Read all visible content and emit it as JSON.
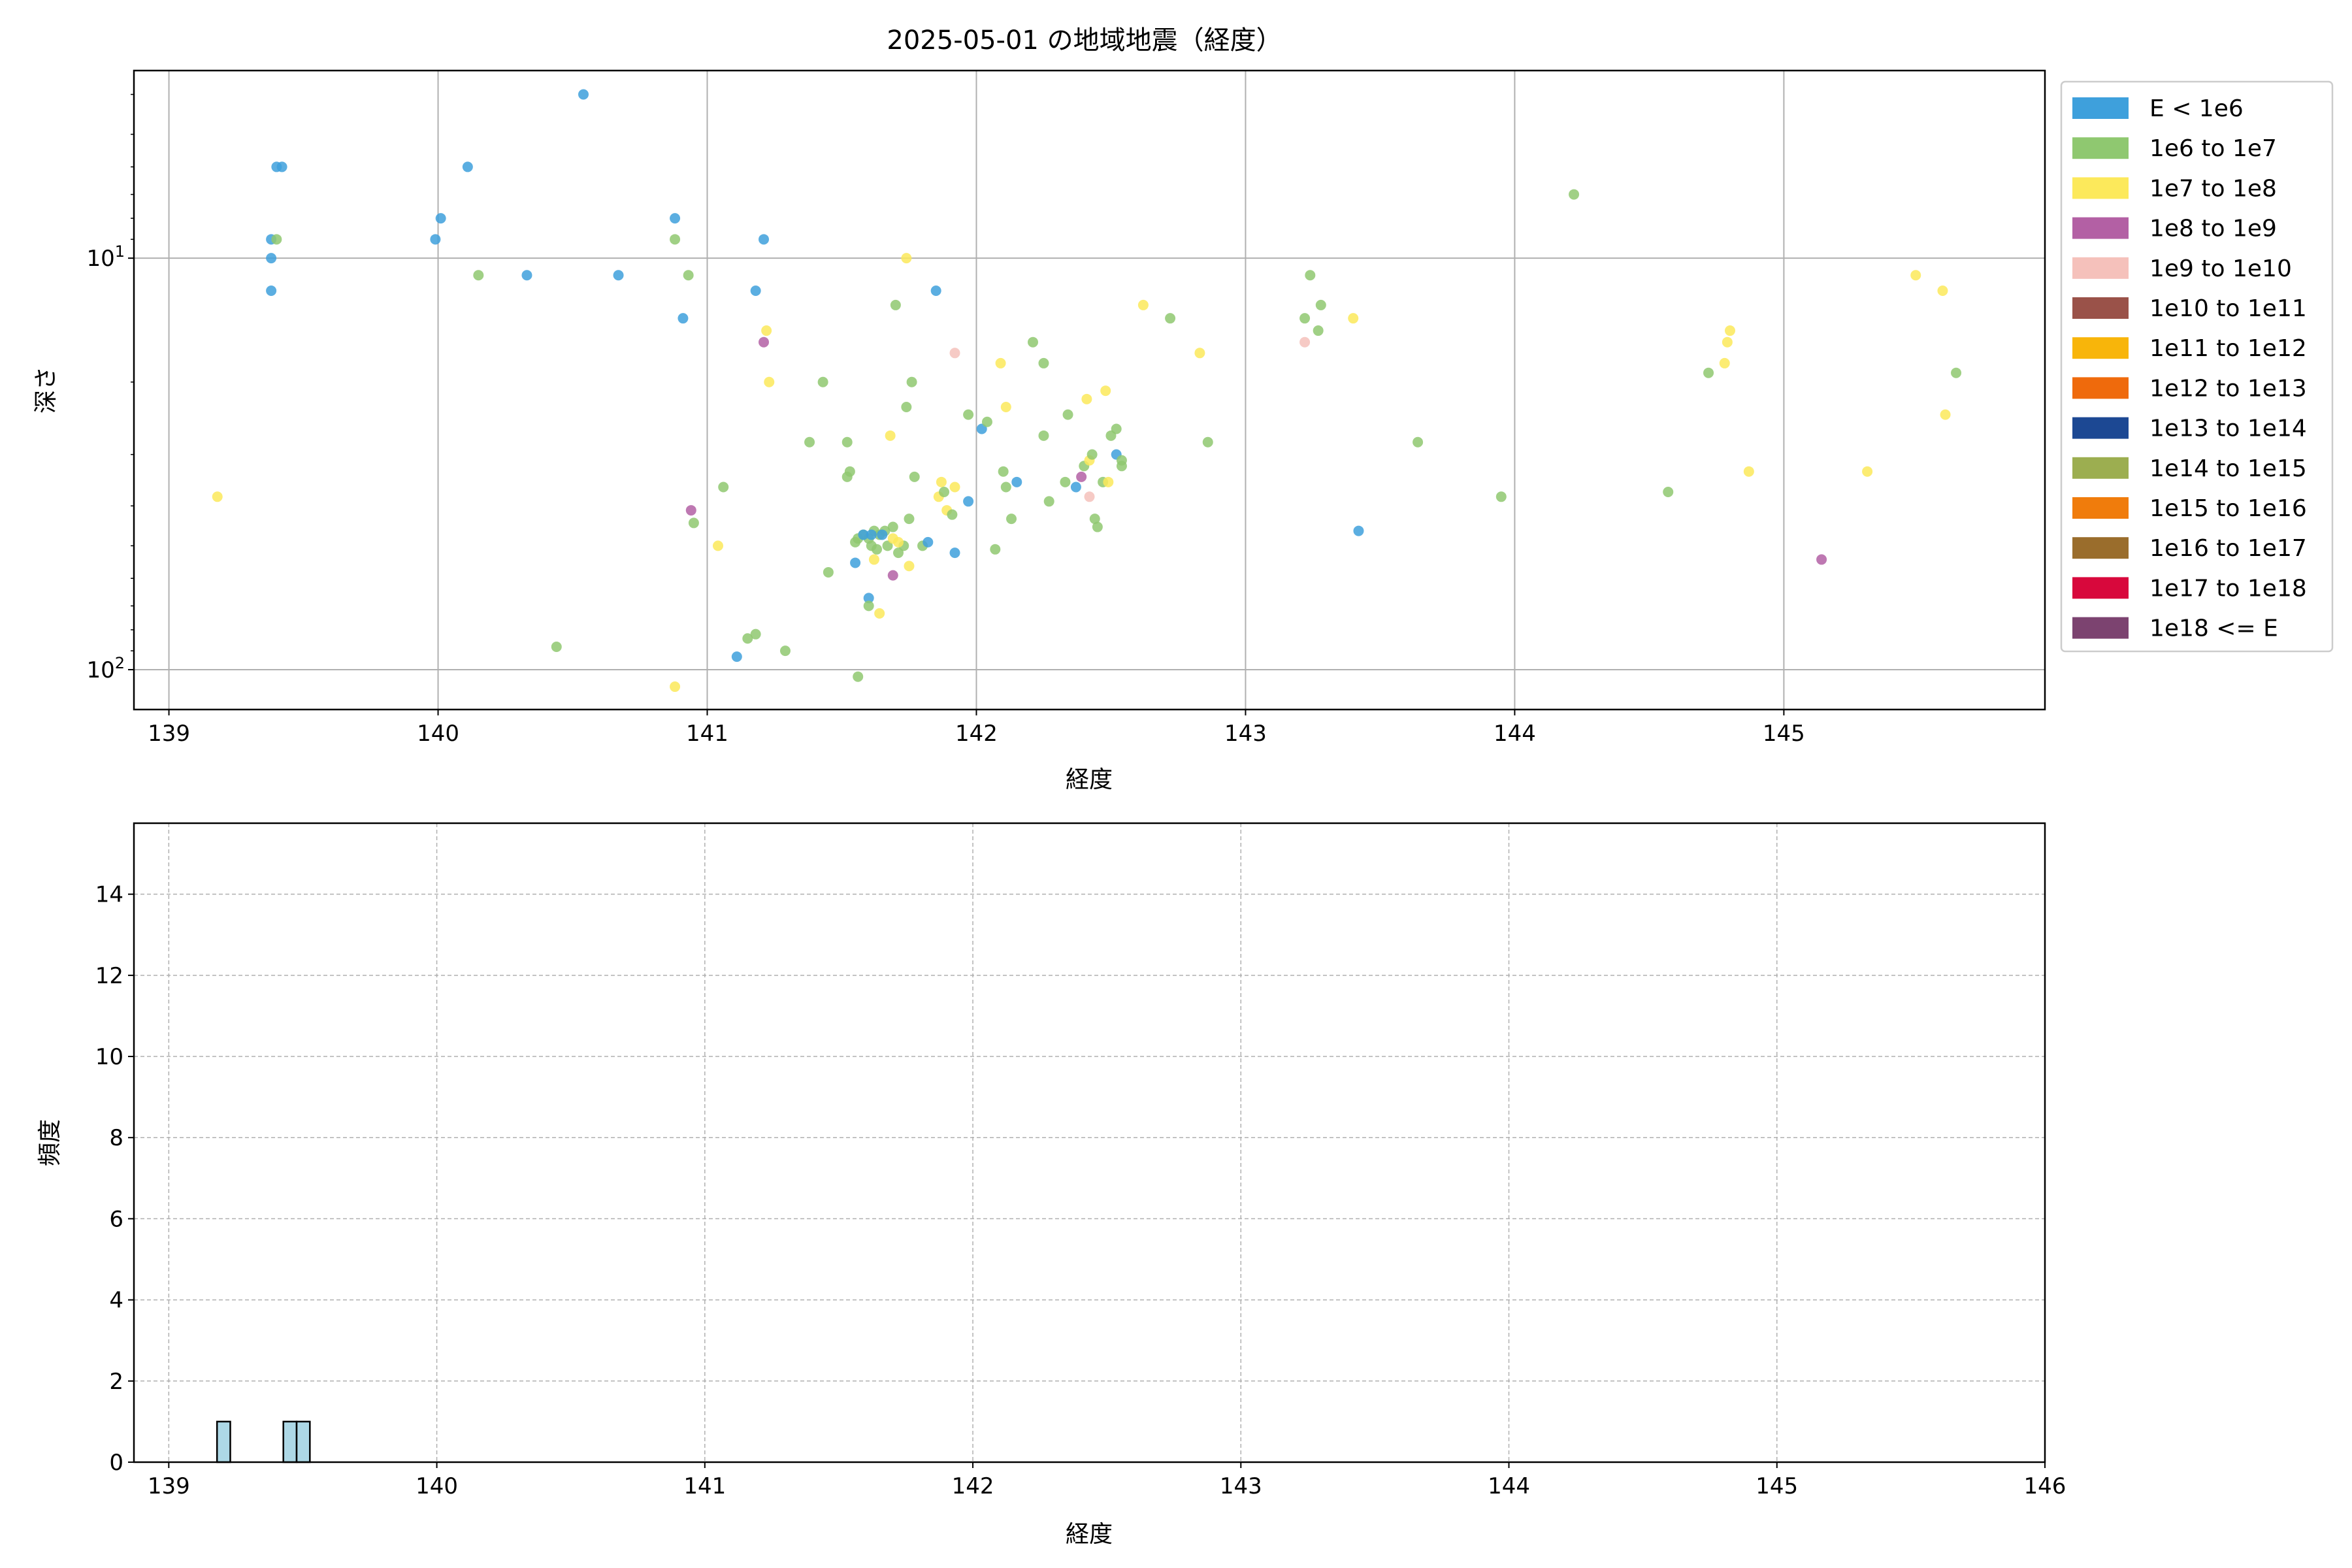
{
  "figure": {
    "title": "2025-05-01 の地域地震（経度）"
  },
  "chart_data": [
    {
      "type": "scatter",
      "xlabel": "経度",
      "ylabel": "深さ",
      "xlim": [
        138.87,
        145.97
      ],
      "ylim": [
        125,
        3.5
      ],
      "yscale": "log",
      "y_inverted": true,
      "xticks": [
        139,
        140,
        141,
        142,
        143,
        144,
        145
      ],
      "yticks": [
        {
          "value": 10,
          "base": "10",
          "exp": "1"
        },
        {
          "value": 100,
          "base": "10",
          "exp": "2"
        }
      ],
      "grid": true,
      "legend_position": "outside-right-top",
      "legend": [
        {
          "label": "E < 1e6",
          "color": "#3ea0dc"
        },
        {
          "label": "1e6 to 1e7",
          "color": "#8fc870"
        },
        {
          "label": "1e7 to 1e8",
          "color": "#fce95b"
        },
        {
          "label": "1e8 to 1e9",
          "color": "#b360a4"
        },
        {
          "label": "1e9 to 1e10",
          "color": "#f5c1bb"
        },
        {
          "label": "1e10 to 1e11",
          "color": "#9a5249"
        },
        {
          "label": "1e11 to 1e12",
          "color": "#f8b50a"
        },
        {
          "label": "1e12 to 1e13",
          "color": "#ef6a0c"
        },
        {
          "label": "1e13 to 1e14",
          "color": "#1c4893"
        },
        {
          "label": "1e14 to 1e15",
          "color": "#9cae50"
        },
        {
          "label": "1e15 to 1e16",
          "color": "#f07c0c"
        },
        {
          "label": "1e16 to 1e17",
          "color": "#9a6d2c"
        },
        {
          "label": "1e17 to 1e18",
          "color": "#d8083c"
        },
        {
          "label": "1e18 <= E",
          "color": "#7c4370"
        }
      ],
      "points": [
        [
          139.38,
          12,
          0
        ],
        [
          139.38,
          10,
          0
        ],
        [
          139.38,
          9,
          0
        ],
        [
          139.4,
          6,
          0
        ],
        [
          139.42,
          6,
          0
        ],
        [
          139.4,
          9,
          1
        ],
        [
          139.99,
          9,
          0
        ],
        [
          140.01,
          8,
          0
        ],
        [
          140.11,
          6,
          0
        ],
        [
          140.33,
          11,
          0
        ],
        [
          140.54,
          4,
          0
        ],
        [
          140.67,
          11,
          0
        ],
        [
          140.88,
          8,
          0
        ],
        [
          140.91,
          14,
          0
        ],
        [
          141.18,
          12,
          0
        ],
        [
          141.21,
          9,
          0
        ],
        [
          140.15,
          11,
          1
        ],
        [
          140.88,
          9,
          1
        ],
        [
          140.93,
          11,
          1
        ],
        [
          139.18,
          38,
          2
        ],
        [
          141.22,
          15,
          2
        ],
        [
          141.21,
          16,
          3
        ],
        [
          141.23,
          20,
          2
        ],
        [
          141.06,
          36,
          1
        ],
        [
          140.95,
          44,
          1
        ],
        [
          140.94,
          41,
          3
        ],
        [
          141.04,
          50,
          2
        ],
        [
          140.44,
          88,
          1
        ],
        [
          140.88,
          110,
          2
        ],
        [
          141.11,
          93,
          0
        ],
        [
          141.15,
          84,
          1
        ],
        [
          141.18,
          82,
          1
        ],
        [
          141.29,
          90,
          1
        ],
        [
          141.56,
          104,
          1
        ],
        [
          141.43,
          20,
          1
        ],
        [
          141.38,
          28,
          1
        ],
        [
          141.45,
          58,
          1
        ],
        [
          141.52,
          28,
          1
        ],
        [
          141.53,
          33,
          1
        ],
        [
          141.52,
          34,
          1
        ],
        [
          141.55,
          49,
          1
        ],
        [
          141.56,
          48,
          1
        ],
        [
          141.58,
          47,
          1
        ],
        [
          141.6,
          48,
          1
        ],
        [
          141.62,
          46,
          1
        ],
        [
          141.64,
          47,
          1
        ],
        [
          141.66,
          46,
          1
        ],
        [
          141.61,
          50,
          1
        ],
        [
          141.63,
          51,
          1
        ],
        [
          141.67,
          50,
          1
        ],
        [
          141.69,
          45,
          1
        ],
        [
          141.71,
          52,
          1
        ],
        [
          141.73,
          50,
          1
        ],
        [
          141.55,
          55,
          0
        ],
        [
          141.58,
          47,
          0
        ],
        [
          141.61,
          47,
          0
        ],
        [
          141.65,
          47,
          0
        ],
        [
          141.62,
          54,
          2
        ],
        [
          141.69,
          48,
          2
        ],
        [
          141.71,
          49,
          2
        ],
        [
          141.75,
          56,
          2
        ],
        [
          141.75,
          43,
          1
        ],
        [
          141.74,
          23,
          1
        ],
        [
          141.76,
          20,
          1
        ],
        [
          141.7,
          13,
          1
        ],
        [
          141.74,
          10,
          2
        ],
        [
          141.68,
          27,
          2
        ],
        [
          141.6,
          67,
          0
        ],
        [
          141.6,
          70,
          1
        ],
        [
          141.64,
          73,
          2
        ],
        [
          141.69,
          59,
          3
        ],
        [
          141.77,
          34,
          1
        ],
        [
          141.8,
          50,
          1
        ],
        [
          141.82,
          49,
          0
        ],
        [
          141.87,
          35,
          2
        ],
        [
          141.86,
          38,
          2
        ],
        [
          141.88,
          37,
          1
        ],
        [
          141.89,
          41,
          2
        ],
        [
          141.91,
          42,
          1
        ],
        [
          141.92,
          36,
          2
        ],
        [
          141.92,
          52,
          0
        ],
        [
          141.85,
          12,
          0
        ],
        [
          141.92,
          17,
          4
        ],
        [
          141.97,
          24,
          1
        ],
        [
          141.97,
          39,
          0
        ],
        [
          142.02,
          26,
          0
        ],
        [
          142.04,
          25,
          1
        ],
        [
          142.07,
          51,
          1
        ],
        [
          142.09,
          18,
          2
        ],
        [
          142.11,
          23,
          2
        ],
        [
          142.1,
          33,
          1
        ],
        [
          142.11,
          36,
          1
        ],
        [
          142.15,
          35,
          0
        ],
        [
          142.13,
          43,
          1
        ],
        [
          142.21,
          16,
          1
        ],
        [
          142.25,
          18,
          1
        ],
        [
          142.25,
          27,
          1
        ],
        [
          142.27,
          39,
          1
        ],
        [
          142.33,
          35,
          1
        ],
        [
          142.34,
          24,
          1
        ],
        [
          142.37,
          36,
          0
        ],
        [
          142.39,
          34,
          3
        ],
        [
          142.4,
          32,
          1
        ],
        [
          142.42,
          31,
          2
        ],
        [
          142.41,
          22,
          2
        ],
        [
          142.42,
          38,
          4
        ],
        [
          142.44,
          43,
          1
        ],
        [
          142.45,
          45,
          1
        ],
        [
          142.43,
          30,
          1
        ],
        [
          142.48,
          21,
          2
        ],
        [
          142.47,
          35,
          1
        ],
        [
          142.49,
          35,
          2
        ],
        [
          142.52,
          30,
          0
        ],
        [
          142.5,
          27,
          1
        ],
        [
          142.52,
          26,
          1
        ],
        [
          142.54,
          31,
          1
        ],
        [
          142.54,
          32,
          1
        ],
        [
          142.62,
          13,
          2
        ],
        [
          142.72,
          14,
          1
        ],
        [
          142.83,
          17,
          2
        ],
        [
          142.86,
          28,
          1
        ],
        [
          143.22,
          14,
          1
        ],
        [
          143.24,
          11,
          1
        ],
        [
          143.27,
          15,
          1
        ],
        [
          143.28,
          13,
          1
        ],
        [
          143.22,
          16,
          4
        ],
        [
          143.4,
          14,
          2
        ],
        [
          143.42,
          46,
          0
        ],
        [
          143.64,
          28,
          1
        ],
        [
          143.95,
          38,
          1
        ],
        [
          144.22,
          7,
          1
        ],
        [
          144.57,
          37,
          1
        ],
        [
          144.72,
          19,
          1
        ],
        [
          144.78,
          18,
          2
        ],
        [
          144.79,
          16,
          2
        ],
        [
          144.8,
          15,
          2
        ],
        [
          144.87,
          33,
          2
        ],
        [
          145.14,
          54,
          3
        ],
        [
          145.31,
          33,
          2
        ],
        [
          145.49,
          11,
          2
        ],
        [
          145.59,
          12,
          2
        ],
        [
          145.6,
          24,
          2
        ],
        [
          145.64,
          19,
          1
        ]
      ]
    },
    {
      "type": "bar",
      "xlabel": "経度",
      "ylabel": "頻度",
      "xlim": [
        138.87,
        146.0
      ],
      "ylim": [
        0,
        15.75
      ],
      "xticks": [
        139,
        140,
        141,
        142,
        143,
        144,
        145,
        146
      ],
      "yticks": [
        0,
        2,
        4,
        6,
        8,
        10,
        12,
        14
      ],
      "grid": true,
      "grid_style": "dashed",
      "bar_color": "#add8e6",
      "bar_edge_color": "#000000",
      "bin_start": 139.18,
      "bin_width": 0.0495,
      "counts": [
        1,
        0,
        0,
        0,
        0,
        1,
        1,
        0,
        0,
        0,
        0,
        0,
        0,
        0,
        0,
        0,
        0,
        0,
        0,
        0,
        0,
        0,
        0,
        0,
        0,
        0,
        0,
        0,
        0,
        0,
        0,
        0,
        0,
        0,
        0,
        0,
        0,
        0,
        0,
        0,
        0,
        0,
        0,
        0,
        0,
        0,
        0,
        0,
        0,
        0,
        0,
        0,
        0,
        0,
        0,
        0,
        0,
        0,
        0,
        0,
        0,
        0,
        0,
        0,
        0,
        0,
        0,
        0,
        0,
        0,
        0,
        0,
        0,
        0,
        0,
        0,
        0,
        0,
        0,
        0,
        0,
        0,
        0,
        0,
        0,
        0,
        0,
        0,
        0,
        0,
        0,
        0,
        0,
        0,
        0,
        0,
        0,
        0,
        0,
        0,
        0,
        0,
        0,
        0,
        0,
        0,
        0,
        0,
        0,
        0,
        0,
        0,
        0,
        0,
        0,
        0,
        0,
        0,
        0,
        0,
        0,
        0,
        0,
        0,
        0,
        0,
        0,
        0,
        0,
        0,
        0,
        0,
        0,
        0,
        0,
        0,
        0,
        0,
        0,
        0
      ]
    }
  ]
}
